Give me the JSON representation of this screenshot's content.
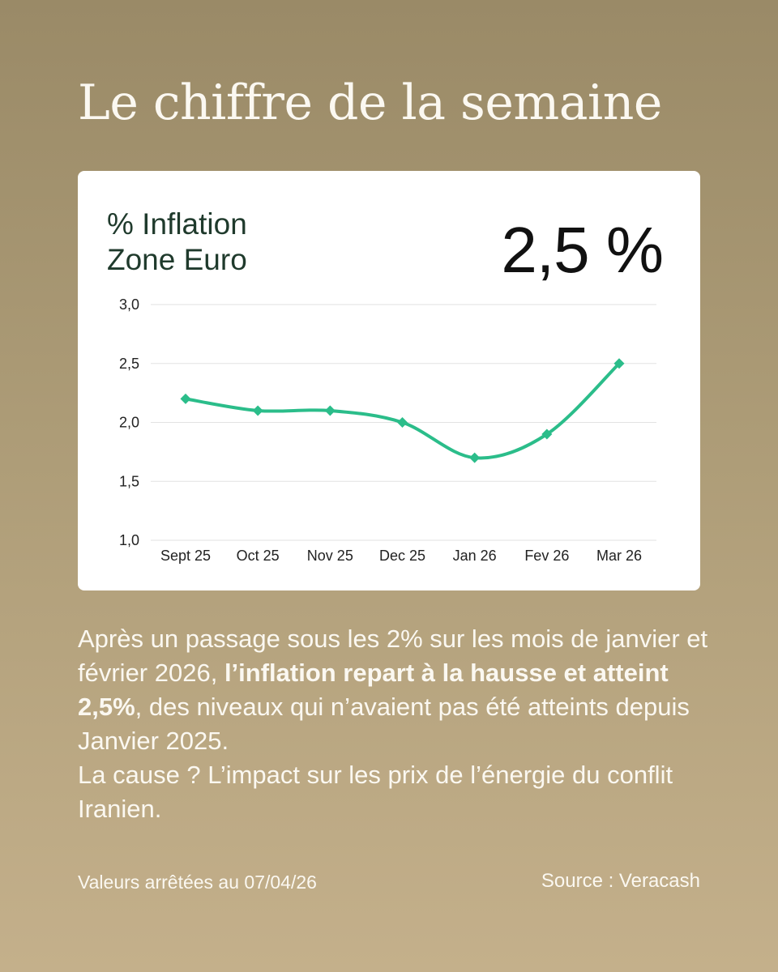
{
  "page": {
    "title": "Le chiffre de la semaine"
  },
  "card": {
    "chart_title_line1": "% Inflation",
    "chart_title_line2": "Zone Euro",
    "big_value": "2,5 %"
  },
  "chart_data": {
    "type": "line",
    "title": "% Inflation Zone Euro",
    "categories": [
      "Sept 25",
      "Oct 25",
      "Nov 25",
      "Dec 25",
      "Jan 26",
      "Fev 26",
      "Mar 26"
    ],
    "values": [
      2.2,
      2.1,
      2.1,
      2.0,
      1.7,
      1.9,
      2.5
    ],
    "ylim": [
      1.0,
      3.0
    ],
    "yticks": [
      1.0,
      1.5,
      2.0,
      2.5,
      3.0
    ],
    "ytick_labels": [
      "1,0",
      "1,5",
      "2,0",
      "2,5",
      "3,0"
    ],
    "grid": true,
    "line_color": "#2bbd8a",
    "grid_color": "#e2e2e2",
    "marker": "diamond",
    "curve": "smooth"
  },
  "body": {
    "part1": "Après un passage sous les 2% sur les mois de janvier et février 2026, ",
    "bold": "l’inflation repart à la hausse et atteint 2,5%",
    "part2": ", des niveaux qui n’avaient pas été atteints depuis Janvier 2025.",
    "part3": "La cause ? L’impact sur les prix de l’énergie du conflit Iranien."
  },
  "footer": {
    "left": "Valeurs arrêtées au 07/04/26",
    "right": "Source : Veracash"
  },
  "colors": {
    "background_top": "#9a8a67",
    "background_bottom": "#c4b08b",
    "card": "#ffffff",
    "title_text": "#fbf8f1",
    "chart_title": "#1f3a2c"
  }
}
